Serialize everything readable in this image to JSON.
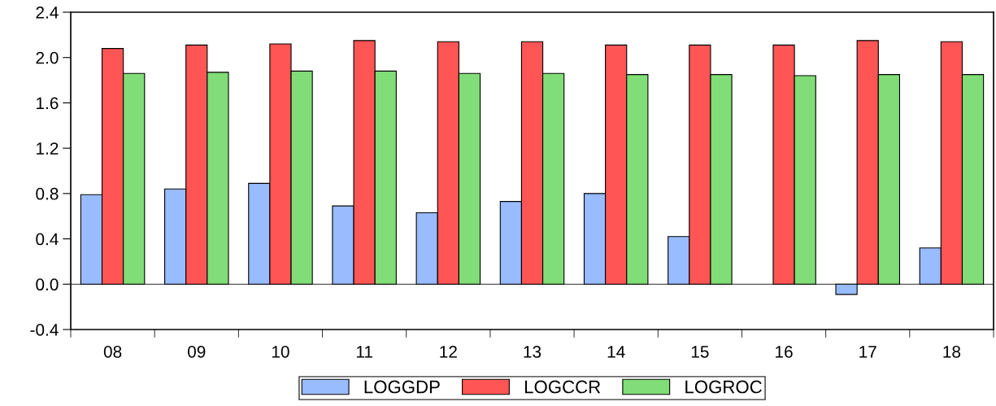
{
  "chart_data": {
    "type": "bar",
    "categories": [
      "08",
      "09",
      "10",
      "11",
      "12",
      "13",
      "14",
      "15",
      "16",
      "17",
      "18"
    ],
    "series": [
      {
        "name": "LOGGDP",
        "color": "#99bbff",
        "values": [
          0.79,
          0.84,
          0.89,
          0.69,
          0.63,
          0.73,
          0.8,
          0.42,
          null,
          -0.09,
          0.32
        ]
      },
      {
        "name": "LOGCCR",
        "color": "#ff5555",
        "values": [
          2.08,
          2.11,
          2.12,
          2.15,
          2.14,
          2.14,
          2.11,
          2.11,
          2.11,
          2.15,
          2.14
        ]
      },
      {
        "name": "LOGROC",
        "color": "#80dd77",
        "values": [
          1.86,
          1.87,
          1.88,
          1.88,
          1.86,
          1.86,
          1.85,
          1.85,
          1.84,
          1.85,
          1.85
        ]
      }
    ],
    "ylim": [
      -0.4,
      2.4
    ],
    "yticks": [
      {
        "value": -0.4,
        "label": "-0.4"
      },
      {
        "value": 0.0,
        "label": "0.0"
      },
      {
        "value": 0.4,
        "label": "0.4"
      },
      {
        "value": 0.8,
        "label": "0.8"
      },
      {
        "value": 1.2,
        "label": "1.2"
      },
      {
        "value": 1.6,
        "label": "1.6"
      },
      {
        "value": 2.0,
        "label": "2.0"
      },
      {
        "value": 2.4,
        "label": "2.4"
      }
    ],
    "ref_lines": [
      {
        "axis": "y",
        "value": 0,
        "color": "#555555"
      }
    ],
    "grid": false,
    "legend": "bottom"
  }
}
